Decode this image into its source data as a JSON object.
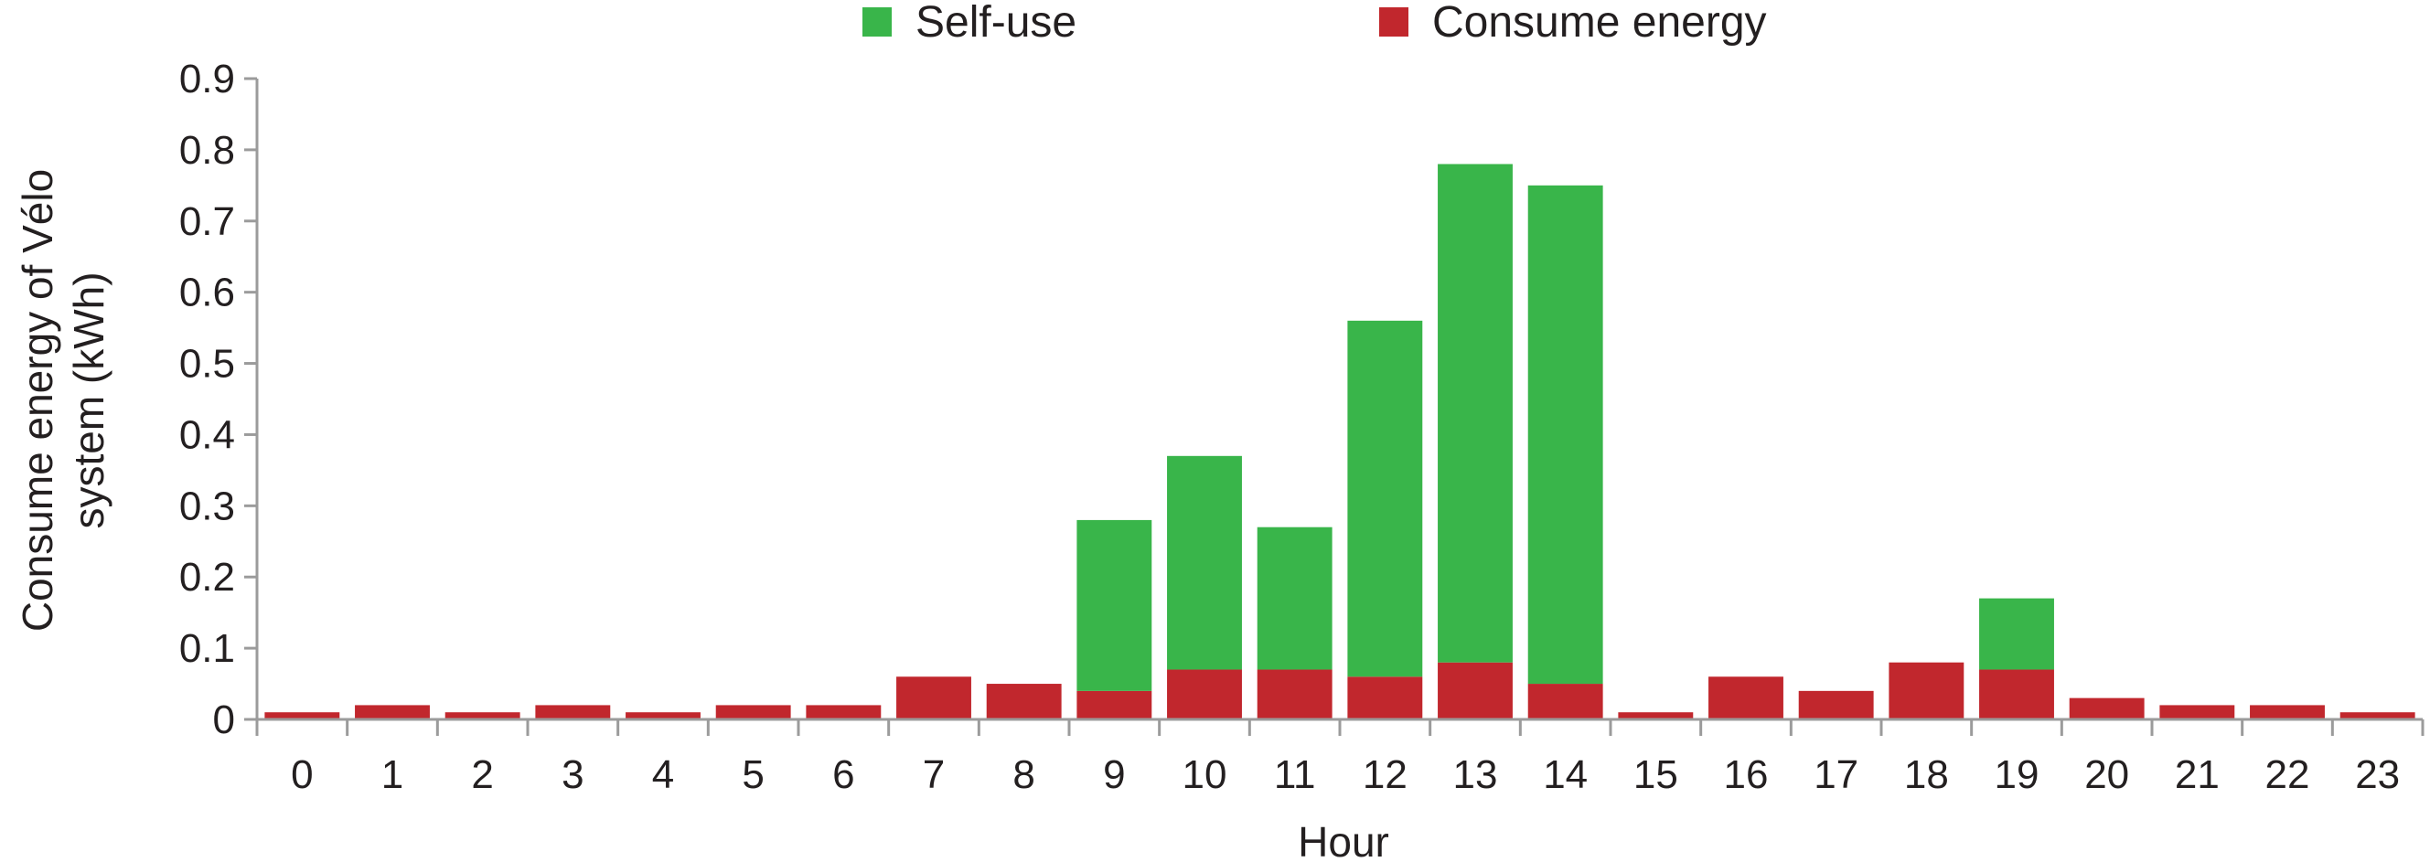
{
  "chart_data": {
    "type": "bar",
    "stacked": true,
    "categories": [
      "0",
      "1",
      "2",
      "3",
      "4",
      "5",
      "6",
      "7",
      "8",
      "9",
      "10",
      "11",
      "12",
      "13",
      "14",
      "15",
      "16",
      "17",
      "18",
      "19",
      "20",
      "21",
      "22",
      "23"
    ],
    "series": [
      {
        "name": "Consume energy",
        "color": "#c1272d",
        "values": [
          0.01,
          0.02,
          0.01,
          0.02,
          0.01,
          0.02,
          0.02,
          0.06,
          0.05,
          0.04,
          0.07,
          0.07,
          0.06,
          0.08,
          0.05,
          0.01,
          0.06,
          0.04,
          0.08,
          0.07,
          0.03,
          0.02,
          0.02,
          0.01
        ]
      },
      {
        "name": "Self-use",
        "color": "#39b54a",
        "values": [
          0,
          0,
          0,
          0,
          0,
          0,
          0,
          0,
          0,
          0.24,
          0.3,
          0.2,
          0.5,
          0.7,
          0.7,
          0,
          0,
          0,
          0,
          0.1,
          0,
          0,
          0,
          0
        ]
      }
    ],
    "legend_order": [
      "Self-use",
      "Consume energy"
    ],
    "legend_position": "top-center",
    "xlabel": "Hour",
    "ylabel": [
      "Consume energy of Vélo",
      "system (kWh)"
    ],
    "ylim": [
      0,
      0.9
    ],
    "yticks": [
      "0",
      "0.1",
      "0.2",
      "0.3",
      "0.4",
      "0.5",
      "0.6",
      "0.7",
      "0.8",
      "0.9"
    ],
    "grid": false,
    "axis_color": "#9b9b9b"
  }
}
